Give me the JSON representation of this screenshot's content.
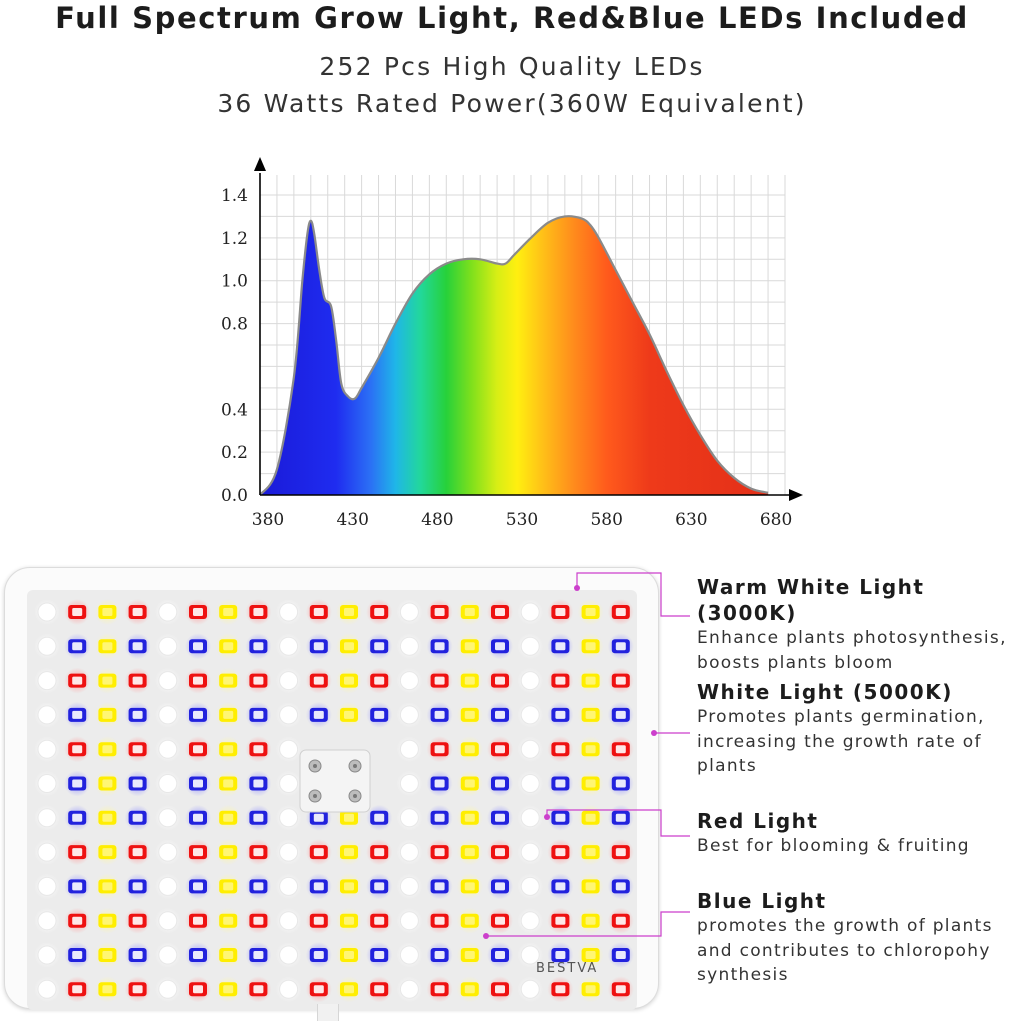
{
  "header": {
    "title": "Full Spectrum Grow Light, Red&Blue LEDs Included",
    "subtitle_line1": "252 Pcs High Quality LEDs",
    "subtitle_line2": "36 Watts Rated Power(360W Equivalent)"
  },
  "chart_data": {
    "type": "area",
    "x": [
      380,
      390,
      400,
      405,
      408,
      410,
      412,
      415,
      418,
      422,
      425,
      428,
      432,
      436,
      440,
      450,
      460,
      470,
      480,
      490,
      500,
      510,
      520,
      525,
      530,
      540,
      550,
      560,
      570,
      575,
      580,
      590,
      600,
      610,
      620,
      630,
      640,
      650,
      660,
      670,
      680
    ],
    "values": [
      0.0,
      0.12,
      0.55,
      1.0,
      1.22,
      1.28,
      1.22,
      1.05,
      0.92,
      0.88,
      0.72,
      0.52,
      0.46,
      0.45,
      0.5,
      0.64,
      0.8,
      0.94,
      1.03,
      1.08,
      1.1,
      1.1,
      1.08,
      1.08,
      1.12,
      1.2,
      1.27,
      1.3,
      1.29,
      1.26,
      1.2,
      1.05,
      0.9,
      0.75,
      0.58,
      0.42,
      0.28,
      0.16,
      0.08,
      0.03,
      0.01
    ],
    "xlim": [
      380,
      690
    ],
    "ylim": [
      0,
      1.4
    ],
    "x_ticks": [
      "380",
      "430",
      "480",
      "530",
      "580",
      "630",
      "680"
    ],
    "y_ticks": [
      "0.0",
      "0.2",
      "0.4",
      "0.8",
      "1.0",
      "1.2",
      "1.4"
    ],
    "grid": true,
    "xlabel": "",
    "ylabel": ""
  },
  "panel": {
    "brand": "BESTVA"
  },
  "labels": [
    {
      "title": "Warm White Light (3000K)",
      "desc": [
        "Enhance plants photosynthesis,",
        "boosts plants bloom"
      ]
    },
    {
      "title": "White Light (5000K)",
      "desc": [
        "Promotes plants germination,",
        "increasing the growth rate of",
        "plants"
      ]
    },
    {
      "title": "Red Light",
      "desc": [
        "Best for blooming & fruiting"
      ]
    },
    {
      "title": "Blue Light",
      "desc": [
        "promotes the growth of plants",
        "and contributes to chloropohy",
        "synthesis"
      ]
    }
  ],
  "colors": {
    "led_red": "#ee1111",
    "led_blue": "#2222dd",
    "led_yellow": "#ffee00",
    "led_white": "#ffffff",
    "leader_line": "#cc3fcc"
  }
}
